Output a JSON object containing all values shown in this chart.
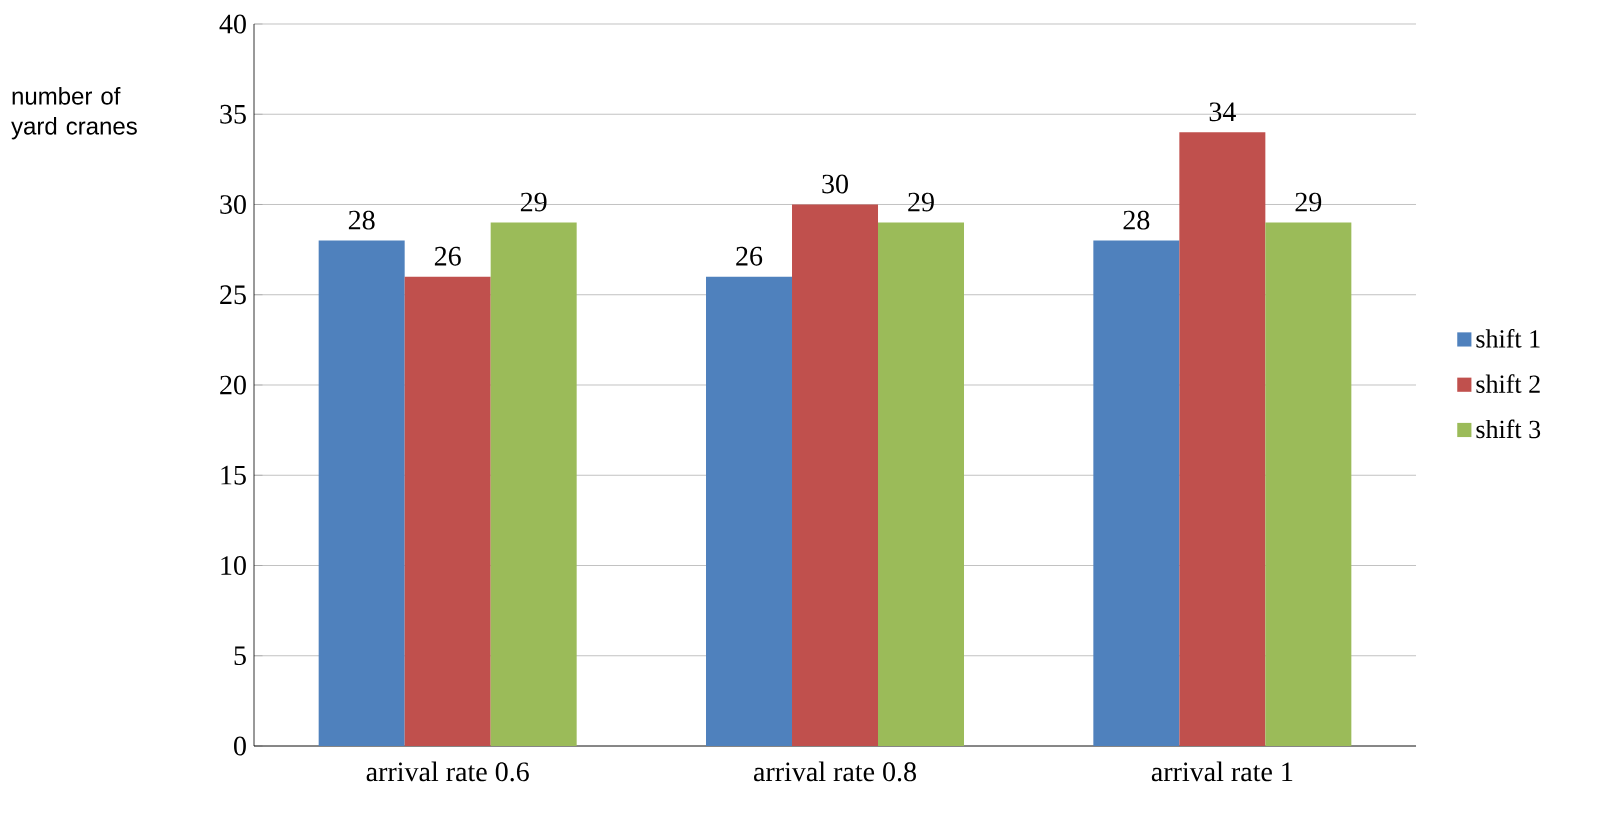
{
  "chart_data": {
    "type": "bar",
    "ylabel": "number of yard cranes",
    "categories": [
      "arrival rate 0.6",
      "arrival rate 0.8",
      "arrival rate 1"
    ],
    "series": [
      {
        "name": "shift 1",
        "color": "#4f81bd",
        "values": [
          28,
          26,
          28
        ]
      },
      {
        "name": "shift 2",
        "color": "#c0504d",
        "values": [
          26,
          30,
          34
        ]
      },
      {
        "name": "shift 3",
        "color": "#9bbb59",
        "values": [
          29,
          29,
          29
        ]
      }
    ],
    "ylim": [
      0,
      40
    ],
    "yticks": [
      0,
      5,
      10,
      15,
      20,
      25,
      30,
      35,
      40
    ],
    "grid": "y",
    "legend": "right",
    "data_labels": true
  }
}
